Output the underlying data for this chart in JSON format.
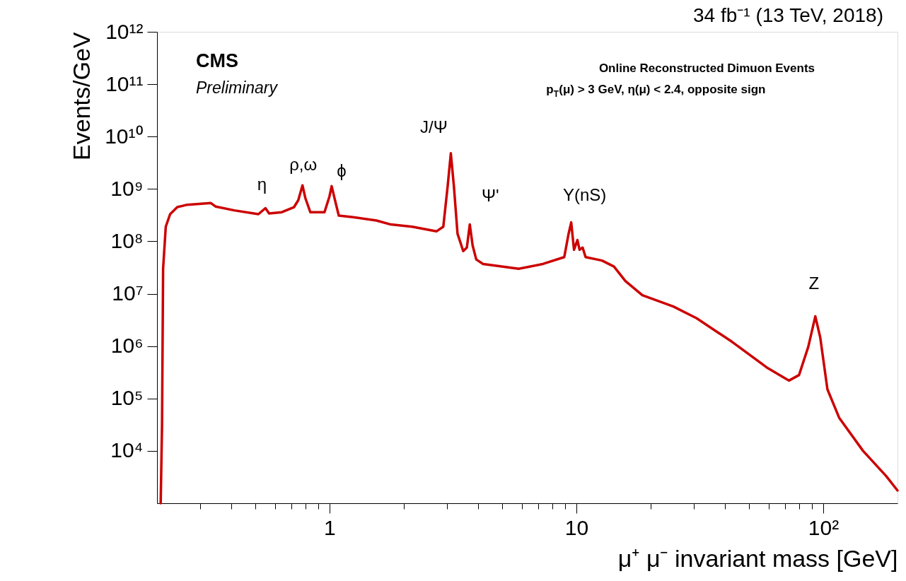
{
  "chart_data": {
    "type": "line",
    "title": "34 fb⁻¹ (13 TeV, 2018)",
    "xlabel": "μ⁺ μ⁻ invariant mass [GeV]",
    "ylabel": "Events/GeV",
    "log": "xy",
    "grid": false,
    "marker": "none",
    "line_style": "solid",
    "xlim": [
      0.2,
      200
    ],
    "ylim": [
      1000,
      1000000000000
    ],
    "xticks": [
      {
        "value": 0.3,
        "label": null
      },
      {
        "value": 0.4,
        "label": null
      },
      {
        "value": 0.5,
        "label": null
      },
      {
        "value": 0.6,
        "label": null
      },
      {
        "value": 0.7,
        "label": null
      },
      {
        "value": 0.8,
        "label": null
      },
      {
        "value": 0.9,
        "label": null
      },
      1,
      {
        "value": 2,
        "label": null
      },
      {
        "value": 3,
        "label": null
      },
      {
        "value": 4,
        "label": null
      },
      {
        "value": 5,
        "label": null
      },
      {
        "value": 6,
        "label": null
      },
      {
        "value": 7,
        "label": null
      },
      {
        "value": 8,
        "label": null
      },
      {
        "value": 9,
        "label": null
      },
      10,
      {
        "value": 20,
        "label": null
      },
      {
        "value": 30,
        "label": null
      },
      {
        "value": 40,
        "label": null
      },
      {
        "value": 50,
        "label": null
      },
      {
        "value": 60,
        "label": null
      },
      {
        "value": 70,
        "label": null
      },
      {
        "value": 80,
        "label": null
      },
      {
        "value": 90,
        "label": null
      },
      {
        "value": 100,
        "label": "10²"
      }
    ],
    "yticks": [
      {
        "value": 10000,
        "label": "10⁴"
      },
      {
        "value": 100000,
        "label": "10⁵"
      },
      {
        "value": 1000000,
        "label": "10⁶"
      },
      {
        "value": 10000000,
        "label": "10⁷"
      },
      {
        "value": 100000000,
        "label": "10⁸"
      },
      {
        "value": 1000000000,
        "label": "10⁹"
      },
      {
        "value": 10000000000,
        "label": "10¹⁰"
      },
      {
        "value": 100000000000,
        "label": "10¹¹"
      },
      {
        "value": 1000000000000,
        "label": "10¹²"
      }
    ],
    "series": [
      {
        "color": "#cc0000",
        "x": [
          0.207,
          0.2096,
          0.2117,
          0.217,
          0.226,
          0.2416,
          0.265,
          0.33,
          0.346,
          0.411,
          0.515,
          0.55,
          0.569,
          0.641,
          0.718,
          0.747,
          0.777,
          0.798,
          0.836,
          0.954,
          1.0,
          1.02,
          1.047,
          1.09,
          1.245,
          1.55,
          1.77,
          2.16,
          2.71,
          2.89,
          3.01,
          3.1,
          3.19,
          3.3,
          3.48,
          3.6,
          3.7,
          3.8,
          3.93,
          4.19,
          5.84,
          7.32,
          8.93,
          9.3,
          9.53,
          9.78,
          10.1,
          10.3,
          10.6,
          10.9,
          12.7,
          14.2,
          15.8,
          18.5,
          24.7,
          30.7,
          42.8,
          59.6,
          72.7,
          79.8,
          87.0,
          92.9,
          97.3,
          104,
          116,
          145,
          180,
          200
        ],
        "values": [
          1000,
          32000,
          30000000,
          190000000,
          330000000,
          450000000,
          500000000,
          540000000,
          460000000,
          390000000,
          330000000,
          430000000,
          340000000,
          360000000,
          450000000,
          610000000,
          1170000000,
          670000000,
          360000000,
          360000000,
          730000000,
          1130000000,
          670000000,
          310000000,
          290000000,
          250000000,
          210000000,
          190000000,
          155000000,
          190000000,
          1130000000,
          4800000000,
          1130000000,
          140000000,
          65000000,
          76000000,
          210000000,
          83000000,
          45000000,
          37000000,
          30000000,
          37000000,
          50000000,
          140000000,
          230000000,
          69000000,
          106000000,
          69000000,
          76000000,
          50000000,
          43000000,
          33000000,
          17500000,
          9400000,
          5700000,
          3400000,
          1200000,
          380000,
          220000,
          280000,
          970000,
          3700000,
          1450000,
          150000,
          43000,
          10000,
          3300,
          1750
        ]
      }
    ],
    "annotations": [
      "CMS",
      "Preliminary",
      "Online Reconstructed Dimuon Events",
      "p$_{T}$(μ) > 3 GeV, η(μ) < 2.4, opposite sign",
      {
        "text": "η",
        "x": 0.55,
        "y": 430000000
      },
      {
        "text": "ρ,ω",
        "x": 0.777,
        "y": 1170000000
      },
      {
        "text": "ϕ",
        "x": 1.02,
        "y": 1130000000
      },
      {
        "text": "J/Ψ",
        "x": 3.1,
        "y": 4800000000
      },
      {
        "text": "Ψ'",
        "x": 3.7,
        "y": 210000000
      },
      {
        "text": "Υ(nS)",
        "x": 9.53,
        "y": 230000000
      },
      {
        "text": "Z",
        "x": 92.9,
        "y": 3700000
      }
    ]
  }
}
